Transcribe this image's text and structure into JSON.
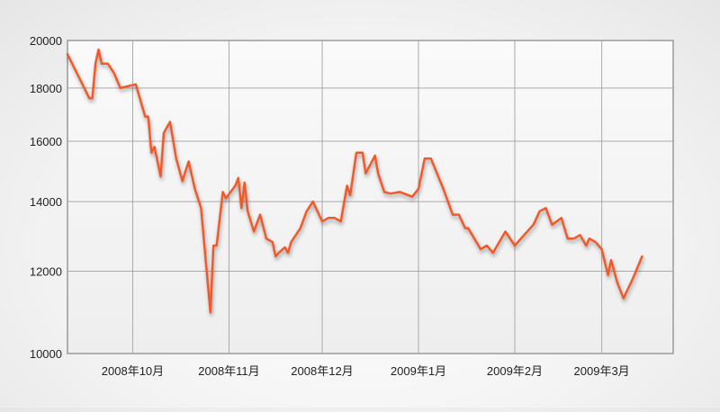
{
  "chart_data": {
    "type": "line",
    "title": "",
    "xlabel": "",
    "ylabel": "",
    "y_scale": "log",
    "ylim": [
      10000,
      20000
    ],
    "xlim": [
      "2008-09-10",
      "2009-03-24"
    ],
    "y_ticks": [
      {
        "value": 10000,
        "label": "10000"
      },
      {
        "value": 12000,
        "label": "12000"
      },
      {
        "value": 14000,
        "label": "14000"
      },
      {
        "value": 16000,
        "label": "16000"
      },
      {
        "value": 18000,
        "label": "18000"
      },
      {
        "value": 20000,
        "label": "20000"
      }
    ],
    "x_ticks": [
      {
        "date": "2008-10-01",
        "label": "2008年10月"
      },
      {
        "date": "2008-11-01",
        "label": "2008年11月"
      },
      {
        "date": "2008-12-01",
        "label": "2008年12月"
      },
      {
        "date": "2009-01-01",
        "label": "2009年1月"
      },
      {
        "date": "2009-02-01",
        "label": "2009年2月"
      },
      {
        "date": "2009-03-01",
        "label": "2009年3月"
      }
    ],
    "grid": true,
    "colors": {
      "line": "#f05a2a",
      "grid": "#aaaaaa",
      "frame": "#999999",
      "plot_bg": "#f7f7f7"
    },
    "series": [
      {
        "name": "",
        "x": [
          "2008-09-10",
          "2008-09-15",
          "2008-09-17",
          "2008-09-18",
          "2008-09-19",
          "2008-09-20",
          "2008-09-21",
          "2008-09-23",
          "2008-09-25",
          "2008-09-27",
          "2008-10-02",
          "2008-10-05",
          "2008-10-06",
          "2008-10-07",
          "2008-10-08",
          "2008-10-10",
          "2008-10-11",
          "2008-10-13",
          "2008-10-15",
          "2008-10-17",
          "2008-10-19",
          "2008-10-21",
          "2008-10-23",
          "2008-10-26",
          "2008-10-27",
          "2008-10-28",
          "2008-10-30",
          "2008-10-31",
          "2008-11-03",
          "2008-11-04",
          "2008-11-05",
          "2008-11-06",
          "2008-11-07",
          "2008-11-09",
          "2008-11-11",
          "2008-11-13",
          "2008-11-15",
          "2008-11-16",
          "2008-11-17",
          "2008-11-19",
          "2008-11-20",
          "2008-11-21",
          "2008-11-24",
          "2008-11-26",
          "2008-11-28",
          "2008-12-01",
          "2008-12-03",
          "2008-12-05",
          "2008-12-07",
          "2008-12-09",
          "2008-12-10",
          "2008-12-12",
          "2008-12-14",
          "2008-12-15",
          "2008-12-16",
          "2008-12-18",
          "2008-12-19",
          "2008-12-21",
          "2008-12-23",
          "2008-12-26",
          "2008-12-30",
          "2009-01-01",
          "2009-01-03",
          "2009-01-05",
          "2009-01-09",
          "2009-01-12",
          "2009-01-14",
          "2009-01-16",
          "2009-01-17",
          "2009-01-19",
          "2009-01-21",
          "2009-01-23",
          "2009-01-25",
          "2009-01-27",
          "2009-01-29",
          "2009-02-01",
          "2009-02-04",
          "2009-02-07",
          "2009-02-09",
          "2009-02-11",
          "2009-02-13",
          "2009-02-16",
          "2009-02-18",
          "2009-02-20",
          "2009-02-22",
          "2009-02-24",
          "2009-02-25",
          "2009-02-27",
          "2009-03-01",
          "2009-03-03",
          "2009-03-04",
          "2009-03-06",
          "2009-03-08",
          "2009-03-11",
          "2009-03-14"
        ],
        "values": [
          19400,
          18100,
          17600,
          17600,
          19000,
          19600,
          19000,
          19000,
          18600,
          18000,
          18150,
          16900,
          16900,
          15600,
          15800,
          14800,
          16300,
          16700,
          15400,
          14650,
          15300,
          14400,
          13800,
          10950,
          12700,
          12700,
          14300,
          14100,
          14500,
          14750,
          13800,
          14600,
          13700,
          13100,
          13600,
          12900,
          12800,
          12400,
          12500,
          12650,
          12500,
          12800,
          13200,
          13700,
          14000,
          13400,
          13500,
          13500,
          13400,
          14500,
          14200,
          15600,
          15600,
          14900,
          15100,
          15500,
          14900,
          14300,
          14250,
          14300,
          14150,
          14400,
          15400,
          15400,
          14400,
          13600,
          13600,
          13200,
          13200,
          12900,
          12600,
          12700,
          12500,
          12800,
          13100,
          12700,
          13000,
          13300,
          13700,
          13800,
          13300,
          13500,
          12900,
          12900,
          13000,
          12700,
          12900,
          12800,
          12600,
          11900,
          12300,
          11700,
          11300,
          11800,
          12400
        ]
      }
    ]
  }
}
